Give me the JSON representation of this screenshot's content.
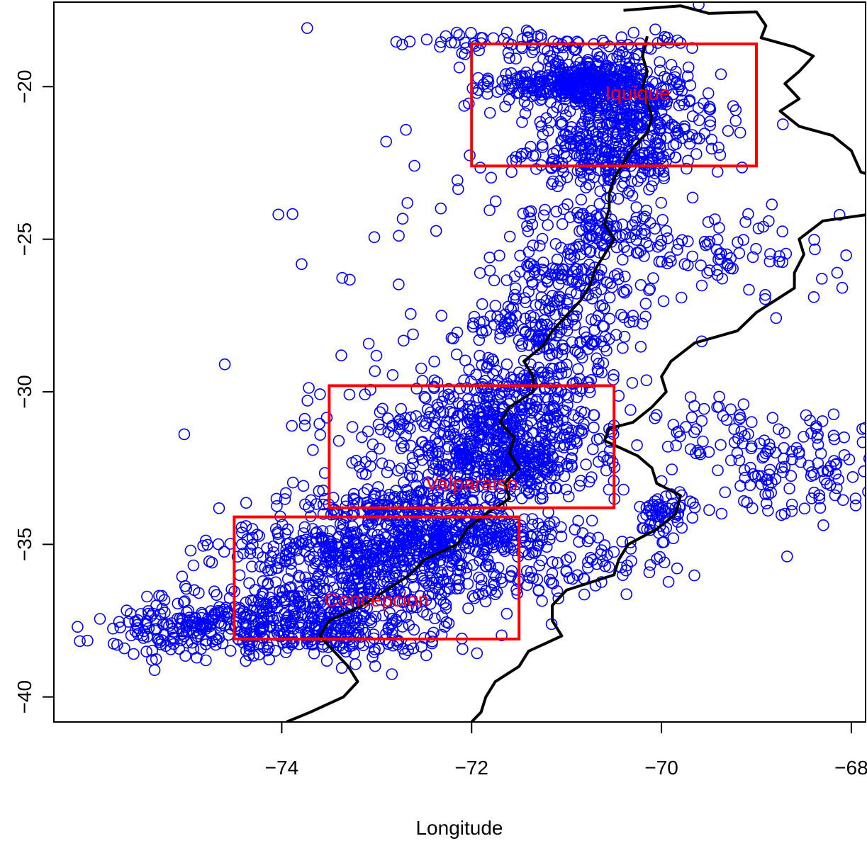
{
  "chart_data": {
    "type": "scatter",
    "title": "",
    "xlabel": "Longitude",
    "ylabel": "",
    "xlim": [
      -76.4,
      -67.85
    ],
    "ylim": [
      -40.82,
      -17.23
    ],
    "x_ticks": [
      -74,
      -72,
      -70,
      -68
    ],
    "x_tick_labels": [
      "−74",
      "−72",
      "−70",
      "−68"
    ],
    "y_ticks": [
      -20,
      -25,
      -30,
      -35,
      -40
    ],
    "y_tick_labels": [
      "−20",
      "−25",
      "−30",
      "−35",
      "−40"
    ],
    "grid": false,
    "legend": "none",
    "point_color": "#0000ff",
    "box_color": "#ff0000",
    "border_color": "#000000",
    "regions": [
      {
        "name": "Iquique",
        "lon_min": -72.0,
        "lon_max": -69.0,
        "lat_min": -22.6,
        "lat_max": -18.6,
        "label_lon": -70.25,
        "label_lat": -20.2
      },
      {
        "name": "Valparaiso",
        "lon_min": -73.5,
        "lon_max": -70.5,
        "lat_min": -33.8,
        "lat_max": -29.8,
        "label_lon": -72.0,
        "label_lat": -33.0
      },
      {
        "name": "Concepcion",
        "lon_min": -74.5,
        "lon_max": -71.5,
        "lat_min": -38.1,
        "lat_max": -34.1,
        "label_lon": -73.0,
        "label_lat": -36.8
      }
    ],
    "coastline": [
      [
        -70.15,
        -18.35
      ],
      [
        -70.2,
        -19.0
      ],
      [
        -70.15,
        -19.5
      ],
      [
        -70.2,
        -20.0
      ],
      [
        -70.15,
        -20.5
      ],
      [
        -70.1,
        -21.0
      ],
      [
        -70.15,
        -21.5
      ],
      [
        -70.3,
        -22.0
      ],
      [
        -70.4,
        -22.5
      ],
      [
        -70.5,
        -23.0
      ],
      [
        -70.55,
        -23.5
      ],
      [
        -70.55,
        -24.0
      ],
      [
        -70.6,
        -24.5
      ],
      [
        -70.5,
        -25.0
      ],
      [
        -70.6,
        -25.5
      ],
      [
        -70.7,
        -26.0
      ],
      [
        -70.75,
        -26.5
      ],
      [
        -70.85,
        -27.0
      ],
      [
        -71.0,
        -27.5
      ],
      [
        -71.15,
        -28.0
      ],
      [
        -71.25,
        -28.5
      ],
      [
        -71.45,
        -29.0
      ],
      [
        -71.35,
        -29.5
      ],
      [
        -71.35,
        -30.0
      ],
      [
        -71.6,
        -30.5
      ],
      [
        -71.7,
        -31.0
      ],
      [
        -71.55,
        -31.5
      ],
      [
        -71.6,
        -32.0
      ],
      [
        -71.5,
        -32.5
      ],
      [
        -71.65,
        -33.0
      ],
      [
        -71.6,
        -33.5
      ],
      [
        -71.85,
        -34.0
      ],
      [
        -72.05,
        -34.5
      ],
      [
        -72.15,
        -35.0
      ],
      [
        -72.5,
        -35.5
      ],
      [
        -72.65,
        -36.0
      ],
      [
        -72.9,
        -36.5
      ],
      [
        -73.15,
        -37.0
      ],
      [
        -73.5,
        -37.5
      ],
      [
        -73.6,
        -38.0
      ],
      [
        -73.45,
        -38.5
      ],
      [
        -73.3,
        -39.0
      ],
      [
        -73.2,
        -39.5
      ],
      [
        -73.35,
        -40.0
      ],
      [
        -73.7,
        -40.5
      ],
      [
        -73.95,
        -40.82
      ]
    ],
    "border_east": [
      [
        -70.4,
        -17.5
      ],
      [
        -69.8,
        -17.35
      ],
      [
        -69.5,
        -17.6
      ],
      [
        -69.0,
        -17.55
      ],
      [
        -68.9,
        -18.0
      ],
      [
        -68.95,
        -18.4
      ],
      [
        -68.6,
        -18.7
      ],
      [
        -68.4,
        -19.0
      ],
      [
        -68.55,
        -19.5
      ],
      [
        -68.7,
        -19.9
      ],
      [
        -68.55,
        -20.4
      ],
      [
        -68.75,
        -20.8
      ],
      [
        -68.55,
        -21.3
      ],
      [
        -68.2,
        -21.6
      ],
      [
        -68.0,
        -22.1
      ],
      [
        -67.9,
        -22.8
      ],
      [
        -67.85,
        -22.85
      ]
    ],
    "border_argentina": [
      [
        -67.85,
        -24.2
      ],
      [
        -68.3,
        -24.4
      ],
      [
        -68.55,
        -25.0
      ],
      [
        -68.5,
        -25.5
      ],
      [
        -68.6,
        -26.1
      ],
      [
        -68.6,
        -26.6
      ],
      [
        -68.8,
        -27.0
      ],
      [
        -69.0,
        -27.4
      ],
      [
        -69.2,
        -28.0
      ],
      [
        -69.65,
        -28.4
      ],
      [
        -69.9,
        -29.0
      ],
      [
        -70.0,
        -29.5
      ],
      [
        -69.95,
        -30.0
      ],
      [
        -70.1,
        -30.5
      ],
      [
        -70.3,
        -31.0
      ],
      [
        -70.55,
        -31.2
      ],
      [
        -70.6,
        -31.6
      ],
      [
        -70.25,
        -32.1
      ],
      [
        -70.1,
        -32.5
      ],
      [
        -70.05,
        -33.0
      ],
      [
        -69.8,
        -33.4
      ],
      [
        -69.85,
        -34.0
      ],
      [
        -70.05,
        -34.5
      ],
      [
        -70.35,
        -35.0
      ],
      [
        -70.45,
        -35.5
      ],
      [
        -70.5,
        -36.0
      ],
      [
        -71.0,
        -36.5
      ],
      [
        -71.15,
        -37.0
      ],
      [
        -71.15,
        -37.5
      ],
      [
        -71.05,
        -38.0
      ],
      [
        -71.4,
        -38.5
      ],
      [
        -71.5,
        -39.0
      ],
      [
        -71.75,
        -39.5
      ],
      [
        -71.85,
        -40.0
      ],
      [
        -71.9,
        -40.5
      ],
      [
        -72.0,
        -40.82
      ]
    ],
    "series": [
      {
        "clusters": [
          {
            "lon": -70.8,
            "lat": -19.8,
            "slon": 0.35,
            "slat": 0.35,
            "n": 300
          },
          {
            "lon": -70.3,
            "lat": -20.5,
            "slon": 0.45,
            "slat": 0.6,
            "n": 200
          },
          {
            "lon": -70.4,
            "lat": -21.6,
            "slon": 0.45,
            "slat": 0.5,
            "n": 180
          },
          {
            "lon": -70.6,
            "lat": -22.5,
            "slon": 0.4,
            "slat": 0.4,
            "n": 150
          },
          {
            "lon": -71.2,
            "lat": -18.6,
            "slon": 0.8,
            "slat": 0.2,
            "n": 80
          },
          {
            "lon": -71.3,
            "lat": -20.0,
            "slon": 0.4,
            "slat": 0.3,
            "n": 80
          },
          {
            "lon": -70.6,
            "lat": -24.7,
            "slon": 0.45,
            "slat": 0.6,
            "n": 120
          },
          {
            "lon": -71.0,
            "lat": -26.3,
            "slon": 0.4,
            "slat": 0.6,
            "n": 120
          },
          {
            "lon": -71.2,
            "lat": -28.0,
            "slon": 0.5,
            "slat": 0.6,
            "n": 150
          },
          {
            "lon": -71.5,
            "lat": -29.8,
            "slon": 0.5,
            "slat": 0.5,
            "n": 120
          },
          {
            "lon": -71.7,
            "lat": -31.2,
            "slon": 0.55,
            "slat": 0.6,
            "n": 300
          },
          {
            "lon": -71.8,
            "lat": -32.5,
            "slon": 0.6,
            "slat": 0.6,
            "n": 300
          },
          {
            "lon": -72.8,
            "lat": -33.8,
            "slon": 0.7,
            "slat": 0.4,
            "n": 200
          },
          {
            "lon": -72.2,
            "lat": -34.8,
            "slon": 0.6,
            "slat": 0.4,
            "n": 250
          },
          {
            "lon": -73.2,
            "lat": -35.3,
            "slon": 0.7,
            "slat": 0.45,
            "n": 300
          },
          {
            "lon": -72.6,
            "lat": -36.2,
            "slon": 0.7,
            "slat": 0.5,
            "n": 200
          },
          {
            "lon": -74.0,
            "lat": -37.2,
            "slon": 0.7,
            "slat": 0.5,
            "n": 250
          },
          {
            "lon": -74.9,
            "lat": -37.9,
            "slon": 0.5,
            "slat": 0.4,
            "n": 150
          },
          {
            "lon": -73.4,
            "lat": -38.0,
            "slon": 0.6,
            "slat": 0.4,
            "n": 150
          },
          {
            "lon": -70.0,
            "lat": -34.0,
            "slon": 0.15,
            "slat": 0.5,
            "n": 60
          },
          {
            "lon": -70.6,
            "lat": -35.6,
            "slon": 0.4,
            "slat": 0.6,
            "n": 50
          },
          {
            "lon": -68.5,
            "lat": -32.6,
            "slon": 0.5,
            "slat": 0.8,
            "n": 120
          },
          {
            "lon": -69.4,
            "lat": -31.5,
            "slon": 0.3,
            "slat": 0.6,
            "n": 50
          },
          {
            "lon": -69.1,
            "lat": -25.5,
            "slon": 0.5,
            "slat": 0.8,
            "n": 60
          },
          {
            "lon": -72.0,
            "lat": -27.0,
            "slon": 1.2,
            "slat": 3.0,
            "n": 80
          },
          {
            "lon": -73.0,
            "lat": -31.0,
            "slon": 0.6,
            "slat": 0.8,
            "n": 30
          }
        ],
        "outliers": [
          [
            -74.6,
            -29.1
          ],
          [
            -72.9,
            -21.8
          ],
          [
            -71.9,
            -18.4
          ],
          [
            -72.1,
            -18.9
          ]
        ]
      }
    ]
  }
}
